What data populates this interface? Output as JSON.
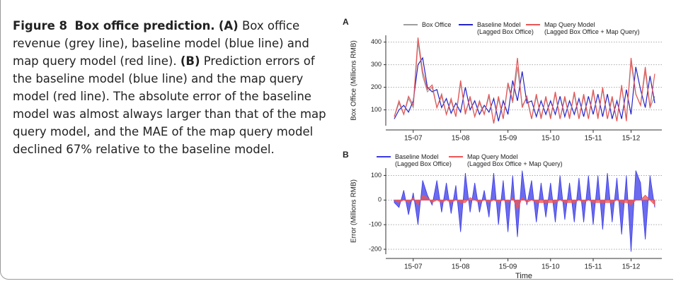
{
  "caption": {
    "label": "Figure 8",
    "title": "Box office prediction.",
    "runs": [
      {
        "text": "(A)",
        "bold": true
      },
      {
        "text": "Box office revenue (grey line), baseline model (blue line) and map query model (red line).",
        "bold": false
      },
      {
        "text": "(B)",
        "bold": true
      },
      {
        "text": "Prediction errors of the baseline model (blue line) and the map query model (red line). The absolute error of the baseline model was almost always larger than that of the map query model, and the MAE of the map query model declined 67% relative to the baseline model.",
        "bold": false
      }
    ]
  },
  "chart_data": [
    {
      "type": "line",
      "panel": "A",
      "ylabel": "Box Office (Millions RMB)",
      "categories": [
        null,
        null,
        null,
        null,
        "15-07",
        null,
        null,
        null,
        null,
        null,
        null,
        null,
        null,
        null,
        "15-08",
        null,
        null,
        null,
        null,
        null,
        null,
        null,
        null,
        null,
        "15-09",
        null,
        null,
        null,
        null,
        null,
        null,
        null,
        null,
        "15-10",
        null,
        null,
        null,
        null,
        null,
        null,
        null,
        null,
        "15-11",
        null,
        null,
        null,
        null,
        null,
        null,
        null,
        "15-12",
        null,
        null,
        null,
        null,
        null
      ],
      "ylim": [
        30,
        430
      ],
      "yticks": [
        100,
        200,
        300,
        400
      ],
      "grid": true,
      "series": [
        {
          "name": "Box Office",
          "color": "#9e9e9e",
          "values": [
            70,
            130,
            80,
            150,
            110,
            400,
            250,
            180,
            200,
            110,
            160,
            80,
            140,
            70,
            220,
            90,
            150,
            70,
            130,
            80,
            160,
            40,
            150,
            60,
            210,
            130,
            290,
            120,
            150,
            60,
            160,
            70,
            150,
            70,
            170,
            60,
            150,
            70,
            170,
            60,
            160,
            60,
            180,
            70,
            190,
            60,
            150,
            50,
            200,
            60,
            310,
            170,
            120,
            270,
            110,
            160
          ]
        },
        {
          "name": "Baseline Model\n(Lagged Box Office)",
          "color": "#2323c8",
          "values": [
            60,
            100,
            120,
            90,
            140,
            300,
            330,
            200,
            180,
            190,
            110,
            150,
            85,
            130,
            90,
            200,
            100,
            140,
            80,
            120,
            90,
            150,
            50,
            140,
            80,
            230,
            140,
            270,
            130,
            140,
            70,
            140,
            80,
            140,
            80,
            160,
            70,
            140,
            80,
            150,
            70,
            160,
            80,
            170,
            70,
            170,
            60,
            140,
            60,
            190,
            80,
            290,
            190,
            110,
            250,
            130
          ]
        },
        {
          "name": "Map Query Model\n(Lagged Box Office + Map Query)",
          "color": "#e85555",
          "values": [
            70,
            140,
            80,
            160,
            120,
            420,
            270,
            190,
            210,
            110,
            170,
            80,
            150,
            70,
            230,
            80,
            160,
            70,
            140,
            80,
            170,
            40,
            160,
            60,
            220,
            140,
            330,
            110,
            160,
            60,
            170,
            60,
            160,
            60,
            180,
            60,
            160,
            60,
            180,
            60,
            170,
            60,
            190,
            60,
            200,
            60,
            160,
            50,
            210,
            50,
            330,
            170,
            120,
            290,
            110,
            260
          ]
        }
      ]
    },
    {
      "type": "area",
      "panel": "B",
      "ylabel": "Error (Millions RMB)",
      "xlabel": "Time",
      "categories": [
        null,
        null,
        null,
        null,
        "15-07",
        null,
        null,
        null,
        null,
        null,
        null,
        null,
        null,
        null,
        "15-08",
        null,
        null,
        null,
        null,
        null,
        null,
        null,
        null,
        null,
        "15-09",
        null,
        null,
        null,
        null,
        null,
        null,
        null,
        null,
        "15-10",
        null,
        null,
        null,
        null,
        null,
        null,
        null,
        null,
        "15-11",
        null,
        null,
        null,
        null,
        null,
        null,
        null,
        "15-12",
        null,
        null,
        null,
        null,
        null
      ],
      "ylim": [
        -220,
        130
      ],
      "yticks": [
        -200,
        -100,
        0,
        100
      ],
      "grid": true,
      "series": [
        {
          "name": "Baseline Model\n(Lagged Box Office)",
          "color": "#3a3ae8",
          "values": [
            -10,
            -30,
            40,
            -60,
            30,
            -100,
            80,
            20,
            -20,
            80,
            -50,
            70,
            -55,
            60,
            -130,
            110,
            -50,
            70,
            -50,
            40,
            -70,
            110,
            -100,
            80,
            -130,
            100,
            -150,
            120,
            -20,
            80,
            -90,
            70,
            -70,
            70,
            -90,
            100,
            -80,
            70,
            -90,
            90,
            -90,
            100,
            -100,
            100,
            -120,
            110,
            -90,
            90,
            -140,
            100,
            -210,
            120,
            70,
            -160,
            100,
            -30
          ]
        },
        {
          "name": "Map Query Model\n(Lagged Box Office + Map Query)",
          "color": "#ee5555",
          "values": [
            0,
            -10,
            0,
            -10,
            10,
            -20,
            20,
            10,
            -10,
            0,
            -10,
            0,
            -10,
            0,
            -10,
            -10,
            10,
            0,
            -10,
            0,
            -10,
            0,
            -10,
            0,
            -10,
            10,
            -40,
            10,
            -10,
            0,
            -10,
            -10,
            -10,
            -10,
            -10,
            0,
            -10,
            -10,
            -10,
            0,
            -10,
            0,
            -10,
            -10,
            -10,
            -10,
            -10,
            0,
            -10,
            -10,
            -20,
            0,
            0,
            20,
            0,
            -20
          ]
        }
      ]
    }
  ]
}
